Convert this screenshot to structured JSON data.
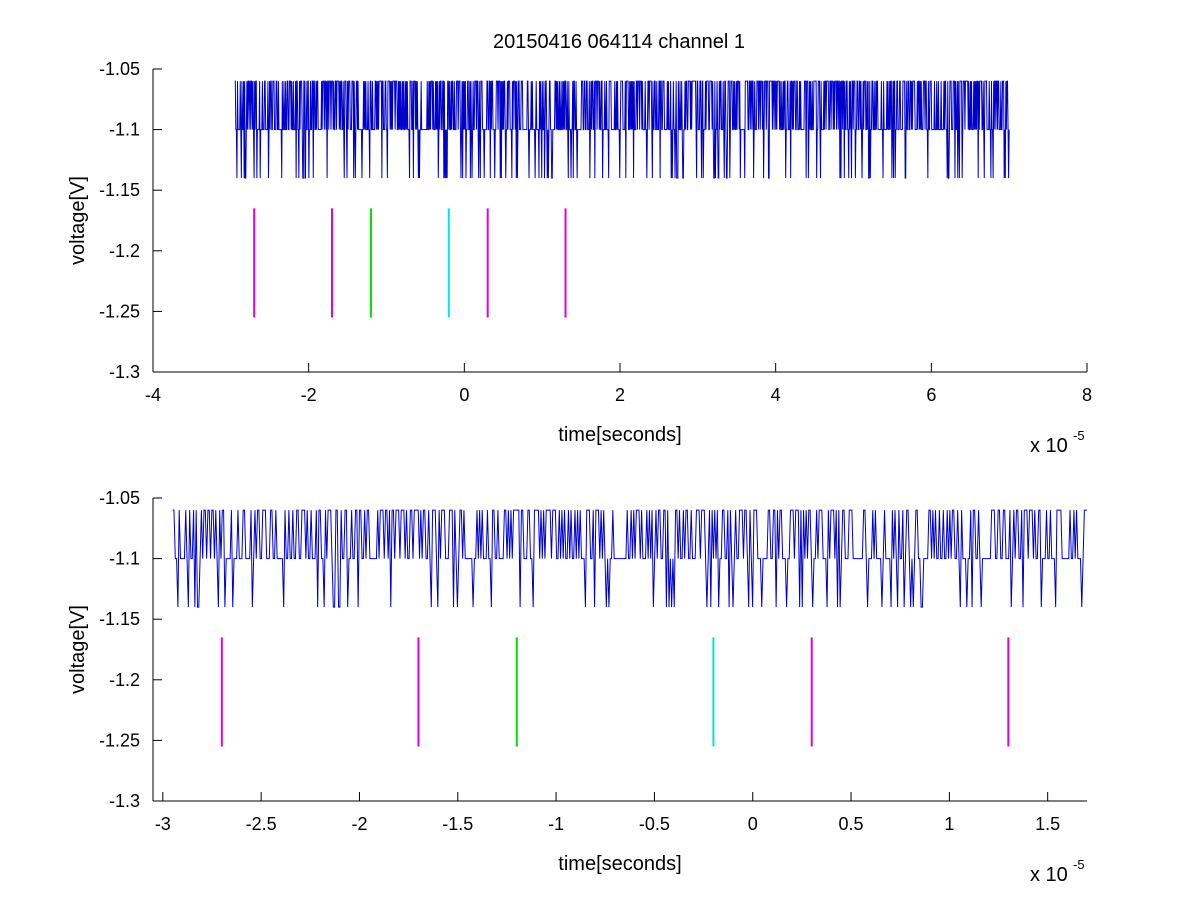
{
  "figure": {
    "title": "20150416 064114 channel 1"
  },
  "chart_data": [
    {
      "type": "line",
      "xlabel": "time[seconds]",
      "ylabel": "voltage[V]",
      "x_multiplier_text": "x 10",
      "x_multiplier_exponent": "-5",
      "xlim": [
        -4,
        8
      ],
      "ylim": [
        -1.3,
        -1.05
      ],
      "xticks": [
        -4,
        -2,
        0,
        2,
        4,
        6,
        8
      ],
      "xtick_labels": [
        "-4",
        "-2",
        "0",
        "2",
        "4",
        "6",
        "8"
      ],
      "yticks": [
        -1.3,
        -1.25,
        -1.2,
        -1.15,
        -1.1,
        -1.05
      ],
      "ytick_labels": [
        "-1.3",
        "-1.25",
        "-1.2",
        "-1.15",
        "-1.1",
        "-1.05"
      ],
      "grid": false,
      "signal": {
        "color": "#0000cc",
        "x_start": -2.95,
        "x_end": 7.0,
        "levels": [
          -1.14,
          -1.1,
          -1.06
        ],
        "baseline": -1.1
      },
      "markers": [
        {
          "x": -2.7,
          "y_range": [
            -1.255,
            -1.165
          ],
          "color": "#e000e0"
        },
        {
          "x": -1.7,
          "y_range": [
            -1.255,
            -1.165
          ],
          "color": "#e000e0"
        },
        {
          "x": -1.2,
          "y_range": [
            -1.255,
            -1.165
          ],
          "color": "#00dd00"
        },
        {
          "x": -0.2,
          "y_range": [
            -1.255,
            -1.165
          ],
          "color": "#00e5e5"
        },
        {
          "x": 0.3,
          "y_range": [
            -1.255,
            -1.165
          ],
          "color": "#e000e0"
        },
        {
          "x": 1.3,
          "y_range": [
            -1.255,
            -1.165
          ],
          "color": "#e000e0"
        }
      ]
    },
    {
      "type": "line",
      "xlabel": "time[seconds]",
      "ylabel": "voltage[V]",
      "x_multiplier_text": "x 10",
      "x_multiplier_exponent": "-5",
      "xlim": [
        -3.05,
        1.7
      ],
      "ylim": [
        -1.3,
        -1.05
      ],
      "xticks": [
        -3,
        -2.5,
        -2,
        -1.5,
        -1,
        -0.5,
        0,
        0.5,
        1,
        1.5
      ],
      "xtick_labels": [
        "-3",
        "-2.5",
        "-2",
        "-1.5",
        "-1",
        "-0.5",
        "0",
        "0.5",
        "1",
        "1.5"
      ],
      "yticks": [
        -1.3,
        -1.25,
        -1.2,
        -1.15,
        -1.1,
        -1.05
      ],
      "ytick_labels": [
        "-1.3",
        "-1.25",
        "-1.2",
        "-1.15",
        "-1.1",
        "-1.05"
      ],
      "grid": false,
      "signal": {
        "color": "#0000cc",
        "x_start": -2.95,
        "x_end": 1.7,
        "levels": [
          -1.14,
          -1.1,
          -1.06
        ],
        "baseline": -1.1
      },
      "markers": [
        {
          "x": -2.7,
          "y_range": [
            -1.255,
            -1.165
          ],
          "color": "#e000e0"
        },
        {
          "x": -1.7,
          "y_range": [
            -1.255,
            -1.165
          ],
          "color": "#e000e0"
        },
        {
          "x": -1.2,
          "y_range": [
            -1.255,
            -1.165
          ],
          "color": "#00dd00"
        },
        {
          "x": -0.2,
          "y_range": [
            -1.255,
            -1.165
          ],
          "color": "#00e5e5"
        },
        {
          "x": 0.3,
          "y_range": [
            -1.255,
            -1.165
          ],
          "color": "#e000e0"
        },
        {
          "x": 1.3,
          "y_range": [
            -1.255,
            -1.165
          ],
          "color": "#e000e0"
        }
      ]
    }
  ]
}
